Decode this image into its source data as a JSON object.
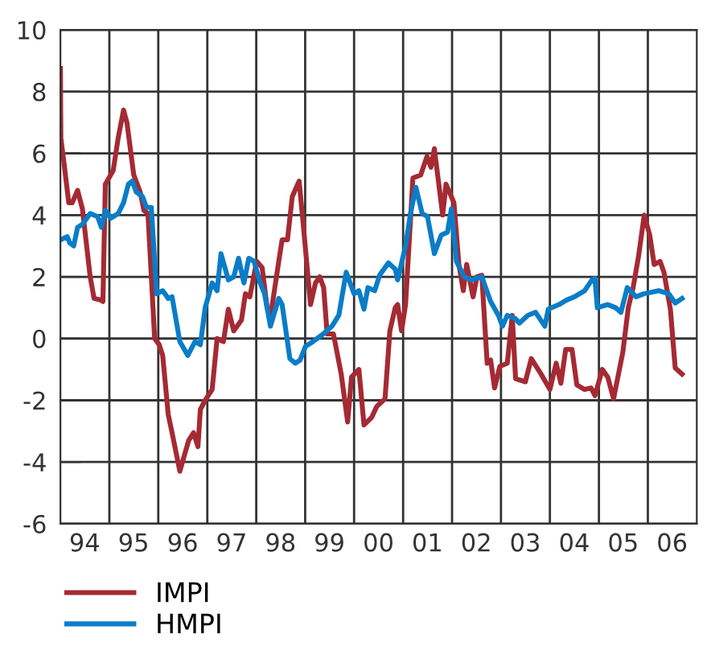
{
  "chart_data": {
    "type": "line",
    "xlim": [
      "1994-01-01",
      "2007-01-01"
    ],
    "ylim": [
      -6,
      10
    ],
    "yticks": [
      -6,
      -4,
      -2,
      0,
      2,
      4,
      6,
      8,
      10
    ],
    "xticks": [
      {
        "value": "1994-07-01",
        "label": "94"
      },
      {
        "value": "1995-07-01",
        "label": "95"
      },
      {
        "value": "1996-07-01",
        "label": "96"
      },
      {
        "value": "1997-07-01",
        "label": "97"
      },
      {
        "value": "1998-07-01",
        "label": "98"
      },
      {
        "value": "1999-07-01",
        "label": "99"
      },
      {
        "value": "2000-07-01",
        "label": "00"
      },
      {
        "value": "2001-07-01",
        "label": "01"
      },
      {
        "value": "2002-07-01",
        "label": "02"
      },
      {
        "value": "2003-07-01",
        "label": "03"
      },
      {
        "value": "2004-07-01",
        "label": "04"
      },
      {
        "value": "2005-07-01",
        "label": "05"
      },
      {
        "value": "2006-07-01",
        "label": "06"
      },
      {
        "value": "1995-01-01",
        "label": null
      },
      {
        "value": "1996-01-01",
        "label": null
      },
      {
        "value": "1997-01-01",
        "label": null
      },
      {
        "value": "1998-01-01",
        "label": null
      },
      {
        "value": "1999-01-01",
        "label": null
      },
      {
        "value": "2000-01-01",
        "label": null
      },
      {
        "value": "2001-01-01",
        "label": null
      },
      {
        "value": "2002-01-01",
        "label": null
      },
      {
        "value": "2003-01-01",
        "label": null
      },
      {
        "value": "2004-01-01",
        "label": null
      },
      {
        "value": "2005-01-01",
        "label": null
      },
      {
        "value": "2006-01-01",
        "label": null
      }
    ],
    "grid": true,
    "legend": "bottom left",
    "line_style": "solid",
    "marker": "none",
    "series": [
      {
        "name": "IMPI",
        "color": "#a52a33",
        "x": [
          "1994-01-01",
          "1994-01-04",
          "1994-01-30",
          "1994-03-04",
          "1994-03-30",
          "1994-05-09",
          "1994-06-14",
          "1994-08-11",
          "1994-09-09",
          "1994-10-27",
          "1994-11-14",
          "1994-12-02",
          "1995-01-30",
          "1995-03-08",
          "1995-04-17",
          "1995-05-12",
          "1995-07-02",
          "1995-08-19",
          "1995-09-16",
          "1995-10-16",
          "1995-12-05",
          "1996-01-08",
          "1996-02-03",
          "1996-03-15",
          "1996-04-13",
          "1996-06-10",
          "1996-07-06",
          "1996-08-15",
          "1996-09-20",
          "1996-10-23",
          "1996-11-10",
          "1996-12-16",
          "1997-02-06",
          "1997-03-15",
          "1997-05-01",
          "1997-06-07",
          "1997-07-17",
          "1997-09-13",
          "1997-10-12",
          "1997-11-14",
          "1998-01-04",
          "1998-02-14",
          "1998-03-23",
          "1998-04-17",
          "1998-06-18",
          "1998-07-13",
          "1998-08-22",
          "1998-09-27",
          "1998-11-17",
          "1998-12-24",
          "1999-02-10",
          "1999-03-19",
          "1999-04-20",
          "1999-05-19",
          "1999-06-14",
          "1999-07-31",
          "1999-09-27",
          "1999-11-14",
          "1999-12-13",
          "2000-02-06",
          "2000-03-15",
          "2000-05-12",
          "2000-06-18",
          "2000-08-19",
          "2000-09-24",
          "2000-11-03",
          "2000-11-21",
          "2000-12-20",
          "2001-01-19",
          "2001-03-15",
          "2001-05-12",
          "2001-06-28",
          "2001-07-28",
          "2001-08-22",
          "2001-10-23",
          "2001-11-17",
          "2002-01-15",
          "2002-02-21",
          "2002-03-26",
          "2002-04-20",
          "2002-06-07",
          "2002-07-06",
          "2002-08-11",
          "2002-09-20",
          "2002-10-16",
          "2002-11-14",
          "2002-12-24",
          "2003-02-17",
          "2003-03-26",
          "2003-04-20",
          "2003-07-02",
          "2003-08-15",
          "2003-10-27",
          "2004-01-01",
          "2004-02-17",
          "2004-03-23",
          "2004-04-28",
          "2004-06-14",
          "2004-07-20",
          "2004-09-16",
          "2004-11-03",
          "2004-12-02",
          "2005-01-26",
          "2005-03-08",
          "2005-04-20",
          "2005-06-28",
          "2005-08-08",
          "2005-09-13",
          "2005-10-23",
          "2005-12-05",
          "2006-01-15",
          "2006-02-17",
          "2006-04-02",
          "2006-05-01",
          "2006-06-18",
          "2006-07-24",
          "2006-09-13"
        ],
        "values": [
          8.75,
          6.5,
          5.6,
          4.4,
          4.4,
          4.8,
          4.2,
          2.0,
          1.3,
          1.25,
          1.2,
          5.0,
          5.45,
          6.5,
          7.4,
          7.0,
          5.3,
          4.75,
          4.15,
          4.05,
          0.0,
          -0.2,
          -0.55,
          -2.45,
          -3.05,
          -4.3,
          -3.9,
          -3.3,
          -3.05,
          -3.5,
          -2.3,
          -2.0,
          -1.65,
          0.0,
          -0.1,
          0.95,
          0.25,
          0.6,
          1.45,
          1.35,
          2.5,
          2.3,
          1.0,
          0.7,
          2.5,
          3.2,
          3.2,
          4.6,
          5.1,
          3.4,
          1.1,
          1.8,
          2.0,
          1.65,
          0.15,
          0.15,
          -1.15,
          -2.7,
          -1.25,
          -1.0,
          -2.8,
          -2.55,
          -2.2,
          -1.95,
          0.25,
          1.0,
          1.1,
          0.25,
          1.1,
          5.2,
          5.3,
          5.9,
          5.55,
          6.15,
          4.0,
          5.0,
          4.4,
          2.4,
          1.55,
          2.4,
          1.35,
          2.0,
          2.05,
          -0.8,
          -0.7,
          -1.6,
          -0.9,
          -0.8,
          0.75,
          -1.3,
          -1.4,
          -0.65,
          -1.15,
          -1.65,
          -0.8,
          -1.45,
          -0.35,
          -0.35,
          -1.5,
          -1.65,
          -1.6,
          -1.85,
          -1.0,
          -1.25,
          -1.95,
          -0.45,
          1.0,
          1.65,
          2.65,
          4.0,
          3.35,
          2.4,
          2.5,
          2.15,
          0.95,
          -0.95,
          -1.15
        ]
      },
      {
        "name": "HMPI",
        "color": "#0a7dc8",
        "x": [
          "1994-01-01",
          "1994-02-21",
          "1994-03-11",
          "1994-04-10",
          "1994-05-09",
          "1994-06-14",
          "1994-08-11",
          "1994-10-05",
          "1994-11-03",
          "1994-12-02",
          "1995-01-12",
          "1995-03-08",
          "1995-04-17",
          "1995-05-23",
          "1995-06-21",
          "1995-07-20",
          "1995-09-05",
          "1995-10-05",
          "1995-11-10",
          "1995-12-20",
          "1996-02-03",
          "1996-03-15",
          "1996-04-13",
          "1996-06-10",
          "1996-08-08",
          "1996-10-01",
          "1996-11-10",
          "1996-12-16",
          "1997-02-06",
          "1997-03-15",
          "1997-04-13",
          "1997-06-07",
          "1997-07-17",
          "1997-08-22",
          "1997-10-01",
          "1997-11-06",
          "1997-12-16",
          "1998-01-30",
          "1998-03-04",
          "1998-04-17",
          "1998-06-18",
          "1998-07-13",
          "1998-09-09",
          "1998-10-19",
          "1998-11-24",
          "1999-01-04",
          "1999-02-28",
          "1999-05-16",
          "1999-07-20",
          "1999-09-09",
          "1999-11-03",
          "2000-01-01",
          "2000-02-06",
          "2000-03-15",
          "2000-04-13",
          "2000-06-03",
          "2000-07-09",
          "2000-09-13",
          "2000-11-03",
          "2000-11-21",
          "2001-01-19",
          "2001-02-25",
          "2001-04-06",
          "2001-05-23",
          "2001-07-02",
          "2001-08-22",
          "2001-10-12",
          "2001-11-28",
          "2001-12-27",
          "2002-02-03",
          "2002-04-02",
          "2002-05-27",
          "2002-08-11",
          "2002-10-16",
          "2002-12-13",
          "2003-01-12",
          "2003-02-17",
          "2003-04-17",
          "2003-05-19",
          "2003-07-20",
          "2003-09-16",
          "2003-11-24",
          "2003-12-20",
          "2004-03-08",
          "2004-05-05",
          "2004-07-02",
          "2004-09-16",
          "2004-11-10",
          "2004-12-02",
          "2004-12-20",
          "2005-03-08",
          "2005-05-05",
          "2005-06-14",
          "2005-07-31",
          "2005-10-05",
          "2005-12-02",
          "2006-01-26",
          "2006-03-23",
          "2006-06-07",
          "2006-07-24",
          "2006-09-13"
        ],
        "values": [
          3.2,
          3.3,
          3.1,
          3.0,
          3.6,
          3.7,
          4.05,
          3.95,
          3.6,
          4.15,
          3.9,
          4.05,
          4.4,
          5.0,
          5.1,
          4.75,
          4.6,
          4.25,
          4.25,
          1.45,
          1.55,
          1.3,
          1.35,
          -0.1,
          -0.55,
          -0.1,
          -0.2,
          1.0,
          1.8,
          1.55,
          2.75,
          1.9,
          2.0,
          2.6,
          1.8,
          2.6,
          2.5,
          1.8,
          1.45,
          0.4,
          1.3,
          1.1,
          -0.65,
          -0.8,
          -0.7,
          -0.25,
          -0.1,
          0.15,
          0.4,
          0.75,
          2.15,
          1.45,
          1.55,
          0.95,
          1.65,
          1.55,
          2.05,
          2.45,
          2.25,
          1.9,
          3.0,
          4.05,
          4.9,
          4.05,
          3.95,
          2.75,
          3.35,
          3.45,
          4.2,
          2.5,
          2.0,
          1.9,
          2.0,
          1.2,
          0.75,
          0.4,
          0.75,
          0.65,
          0.5,
          0.75,
          0.85,
          0.4,
          0.95,
          1.1,
          1.25,
          1.35,
          1.55,
          1.9,
          1.95,
          1.0,
          1.1,
          1.0,
          0.85,
          1.65,
          1.35,
          1.45,
          1.5,
          1.55,
          1.45,
          1.15,
          1.3
        ]
      }
    ]
  }
}
